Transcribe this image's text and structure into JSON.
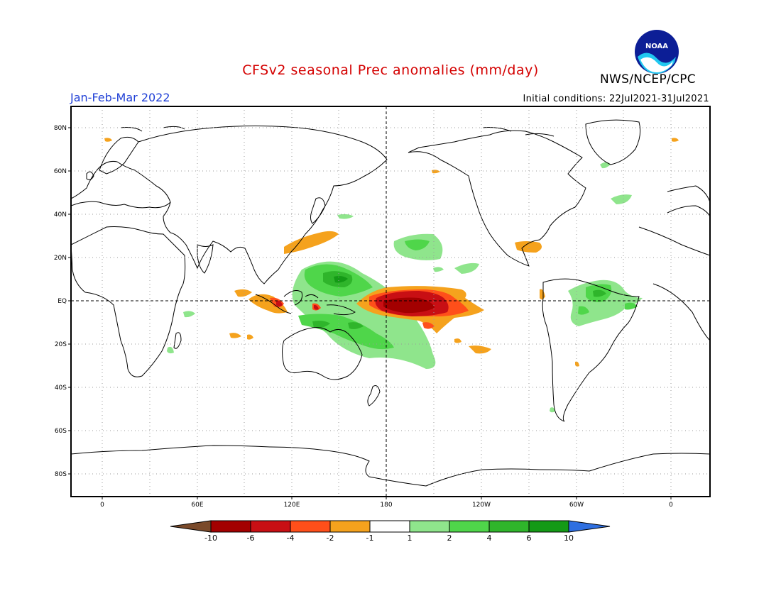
{
  "header": {
    "title": "CFSv2 seasonal Prec anomalies (mm/day)",
    "season": "Jan-Feb-Mar 2022",
    "initial_conditions": "Initial conditions: 22Jul2021-31Jul2021",
    "agency": "NWS/NCEP/CPC",
    "logo_text": "NOAA"
  },
  "colors": {
    "title": "#d40000",
    "season": "#1f3fd6",
    "dry_lt": "#f5a21d",
    "dry_md": "#ff4f1a",
    "dry_dk": "#c80f14",
    "dry_xd": "#a30000",
    "wet_lt": "#8fe58c",
    "wet_md": "#4fd64a",
    "wet_dk": "#2fb52b",
    "wet_xd": "#149a16"
  },
  "map": {
    "lat_labels": [
      "80N",
      "60N",
      "40N",
      "20N",
      "EQ",
      "20S",
      "40S",
      "60S",
      "80S"
    ],
    "lon_labels": [
      "0",
      "60E",
      "120E",
      "180",
      "120W",
      "60W",
      "0"
    ]
  },
  "colorbar": {
    "labels": [
      "-10",
      "-6",
      "-4",
      "-2",
      "-1",
      "1",
      "2",
      "4",
      "6",
      "10"
    ],
    "colors": [
      "#7a4a2a",
      "#a30000",
      "#c80f14",
      "#ff4f1a",
      "#f5a21d",
      "#ffffff",
      "#8fe58c",
      "#4fd64a",
      "#2fb52b",
      "#149a16",
      "#2f6fe0"
    ]
  }
}
